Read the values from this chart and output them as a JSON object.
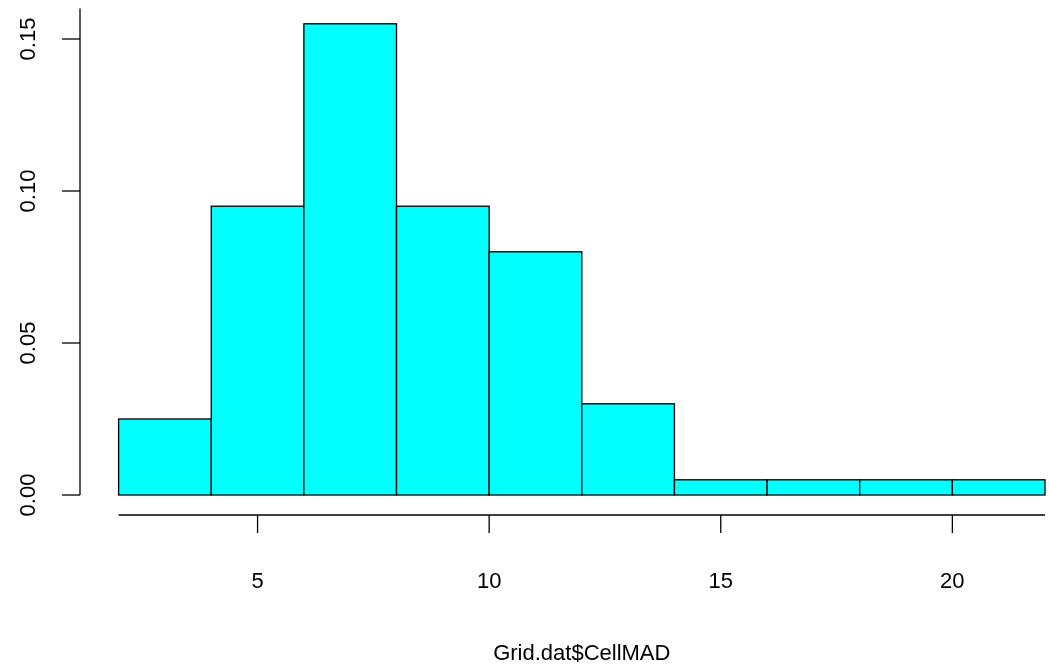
{
  "chart_data": {
    "type": "histogram",
    "xlabel": "Grid.dat$CellMAD",
    "bins": [
      2,
      4,
      6,
      8,
      10,
      12,
      14,
      16,
      18,
      20,
      22
    ],
    "values": [
      0.025,
      0.095,
      0.155,
      0.095,
      0.08,
      0.03,
      0.005,
      0.005,
      0.005,
      0.005
    ],
    "color": "#00ffff",
    "xlim": [
      2,
      22
    ],
    "xticks": [
      5,
      10,
      15,
      20
    ],
    "ylim": [
      0,
      0.16
    ],
    "yticks": [
      {
        "value": 0,
        "label": "0.00"
      },
      {
        "value": 0.05,
        "label": "0.05"
      },
      {
        "value": 0.1,
        "label": "0.10"
      },
      {
        "value": 0.15,
        "label": "0.15"
      }
    ],
    "grid": false
  }
}
